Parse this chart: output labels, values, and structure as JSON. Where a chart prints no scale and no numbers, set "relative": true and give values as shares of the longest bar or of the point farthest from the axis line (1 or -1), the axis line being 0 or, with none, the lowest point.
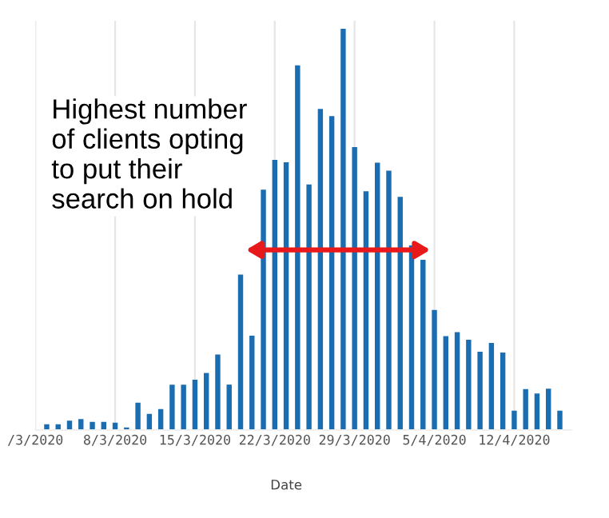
{
  "chart_data": {
    "type": "bar",
    "relative": true,
    "xlabel": "Date",
    "grid": "x",
    "color": "#1a6db0",
    "annotations": [
      "Highest number\nof clients opting\nto put their\nsearch on hold"
    ],
    "x": [
      "2020-03-02",
      "2020-03-03",
      "2020-03-04",
      "2020-03-05",
      "2020-03-06",
      "2020-03-07",
      "2020-03-08",
      "2020-03-09",
      "2020-03-10",
      "2020-03-11",
      "2020-03-12",
      "2020-03-13",
      "2020-03-14",
      "2020-03-15",
      "2020-03-16",
      "2020-03-17",
      "2020-03-18",
      "2020-03-19",
      "2020-03-20",
      "2020-03-21",
      "2020-03-22",
      "2020-03-23",
      "2020-03-24",
      "2020-03-25",
      "2020-03-26",
      "2020-03-27",
      "2020-03-28",
      "2020-03-29",
      "2020-03-30",
      "2020-03-31",
      "2020-04-01",
      "2020-04-02",
      "2020-04-03",
      "2020-04-04",
      "2020-04-05",
      "2020-04-06",
      "2020-04-07",
      "2020-04-08",
      "2020-04-09",
      "2020-04-10",
      "2020-04-11",
      "2020-04-12",
      "2020-04-13",
      "2020-04-14",
      "2020-04-15",
      "2020-04-16"
    ],
    "values": [
      0.014,
      0.014,
      0.023,
      0.027,
      0.02,
      0.02,
      0.018,
      0.006,
      0.068,
      0.04,
      0.052,
      0.113,
      0.113,
      0.125,
      0.142,
      0.188,
      0.113,
      0.387,
      0.235,
      0.599,
      0.673,
      0.667,
      0.909,
      0.612,
      0.8,
      0.782,
      1.0,
      0.705,
      0.595,
      0.666,
      0.646,
      0.581,
      0.46,
      0.424,
      0.299,
      0.234,
      0.244,
      0.225,
      0.195,
      0.217,
      0.193,
      0.048,
      0.102,
      0.091,
      0.103,
      0.048
    ],
    "xlim": [
      "2020-03-01",
      "2020-04-17"
    ],
    "xticks": [
      {
        "value": "2020-03-01",
        "label": "/3/2020"
      },
      {
        "value": "2020-03-08",
        "label": "8/3/2020"
      },
      {
        "value": "2020-03-15",
        "label": "15/3/2020"
      },
      {
        "value": "2020-03-22",
        "label": "22/3/2020"
      },
      {
        "value": "2020-03-29",
        "label": "29/3/2020"
      },
      {
        "value": "2020-04-05",
        "label": "5/4/2020"
      },
      {
        "value": "2020-04-12",
        "label": "12/4/2020"
      }
    ]
  }
}
